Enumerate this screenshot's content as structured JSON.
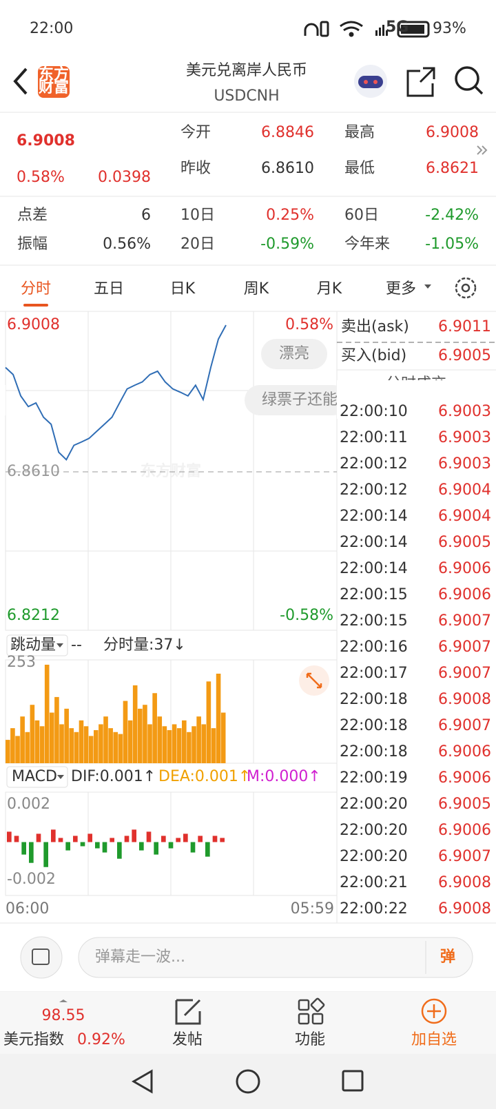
{
  "status": {
    "time": "22:00",
    "network": "5G",
    "battery": "93%"
  },
  "header": {
    "logo_top": "东方",
    "logo_bottom": "财富",
    "title": "美元兑离岸人民币",
    "subtitle": "USDCNH"
  },
  "quote": {
    "price": "6.9008",
    "change_pct": "0.58%",
    "change": "0.0398",
    "top_stats": [
      {
        "label": "今开",
        "value": "6.8846",
        "color": "#e0312d"
      },
      {
        "label": "最高",
        "value": "6.9008",
        "color": "#e0312d"
      },
      {
        "label": "昨收",
        "value": "6.8610",
        "color": "#333333"
      },
      {
        "label": "最低",
        "value": "6.8621",
        "color": "#e0312d"
      }
    ],
    "period_stats": [
      {
        "label": "点差",
        "value": "6",
        "color": "#333333"
      },
      {
        "label": "10日",
        "value": "0.25%",
        "color": "#e0312d"
      },
      {
        "label": "60日",
        "value": "-2.42%",
        "color": "#1f9a2c"
      },
      {
        "label": "振幅",
        "value": "0.56%",
        "color": "#333333"
      },
      {
        "label": "20日",
        "value": "-0.59%",
        "color": "#1f9a2c"
      },
      {
        "label": "今年来",
        "value": "-1.05%",
        "color": "#1f9a2c"
      }
    ]
  },
  "tabs": [
    "分时",
    "五日",
    "日K",
    "周K",
    "月K",
    "更多"
  ],
  "intraday": {
    "ylim": [
      6.8212,
      6.9008
    ],
    "yticks": [
      {
        "value": 6.9008,
        "label": "6.9008"
      },
      {
        "value": 6.861,
        "label": "6.8610"
      },
      {
        "value": 6.8212,
        "label": "6.8212"
      }
    ],
    "pct_top": "0.58%",
    "pct_bottom": "-0.58%",
    "prices": [
      6.8893,
      6.8874,
      6.8816,
      6.8787,
      6.8797,
      6.8758,
      6.8739,
      6.8663,
      6.8643,
      6.8682,
      6.8691,
      6.8701,
      6.872,
      6.8739,
      6.8758,
      6.8797,
      6.8835,
      6.8845,
      6.8854,
      6.8874,
      6.8883,
      6.8854,
      6.8835,
      6.8826,
      6.8816,
      6.8845,
      6.8806,
      6.8893,
      6.897,
      6.9008
    ],
    "pills": [
      "漂亮",
      "绿票子还能"
    ],
    "watermark": "东方财富",
    "time_start": "06:00",
    "time_end": "05:59"
  },
  "volume": {
    "selector": "跳动量",
    "dash": "--",
    "label": "分时量:37↓",
    "ylim": [
      0,
      253
    ],
    "yticks": [
      253
    ],
    "values": [
      60,
      90,
      70,
      120,
      80,
      150,
      110,
      95,
      253,
      130,
      170,
      100,
      140,
      90,
      80,
      110,
      95,
      70,
      85,
      100,
      120,
      90,
      80,
      75,
      160,
      110,
      200,
      140,
      150,
      100,
      180,
      120,
      95,
      85,
      100,
      90,
      110,
      80,
      95,
      120,
      100,
      210,
      90,
      230,
      130
    ]
  },
  "macd": {
    "selector": "MACD",
    "dif": "DIF:0.001↑",
    "dea": "DEA:0.001↑",
    "m": "M:0.000↑",
    "ylim": [
      -0.0024,
      0.0024
    ],
    "yticks": [
      0.002,
      -0.002
    ],
    "values": [
      0.0005,
      0.0003,
      -0.0006,
      -0.001,
      0.0004,
      -0.0012,
      0.0006,
      0.0002,
      -0.0004,
      0.0003,
      -0.0002,
      0.0004,
      -0.0003,
      -0.0005,
      0.0002,
      -0.0008,
      0.0003,
      0.0006,
      -0.0004,
      0.0005,
      -0.0006,
      0.0003,
      -0.0003,
      0.0002,
      0.0004,
      -0.0005,
      0.0003,
      -0.0007,
      0.0003,
      0.0002
    ]
  },
  "orderbook": {
    "ask_label": "卖出(ask)",
    "ask": "6.9011",
    "bid_label": "买入(bid)",
    "bid": "6.9005",
    "trades_title": "分时成交",
    "trades": [
      [
        "22:00:10",
        "6.9003"
      ],
      [
        "22:00:11",
        "6.9003"
      ],
      [
        "22:00:12",
        "6.9003"
      ],
      [
        "22:00:12",
        "6.9004"
      ],
      [
        "22:00:14",
        "6.9004"
      ],
      [
        "22:00:14",
        "6.9005"
      ],
      [
        "22:00:14",
        "6.9006"
      ],
      [
        "22:00:15",
        "6.9006"
      ],
      [
        "22:00:15",
        "6.9007"
      ],
      [
        "22:00:16",
        "6.9007"
      ],
      [
        "22:00:17",
        "6.9007"
      ],
      [
        "22:00:18",
        "6.9008"
      ],
      [
        "22:00:18",
        "6.9007"
      ],
      [
        "22:00:18",
        "6.9006"
      ],
      [
        "22:00:19",
        "6.9006"
      ],
      [
        "22:00:20",
        "6.9005"
      ],
      [
        "22:00:20",
        "6.9006"
      ],
      [
        "22:00:20",
        "6.9007"
      ],
      [
        "22:00:21",
        "6.9008"
      ],
      [
        "22:00:22",
        "6.9008"
      ]
    ]
  },
  "comment": {
    "placeholder": "弹幕走一波...",
    "button": "弹"
  },
  "bottom": {
    "index_value": "98.55",
    "index_name": "美元指数",
    "index_pct": "0.92%",
    "nav": [
      "发帖",
      "功能",
      "加自选"
    ]
  }
}
